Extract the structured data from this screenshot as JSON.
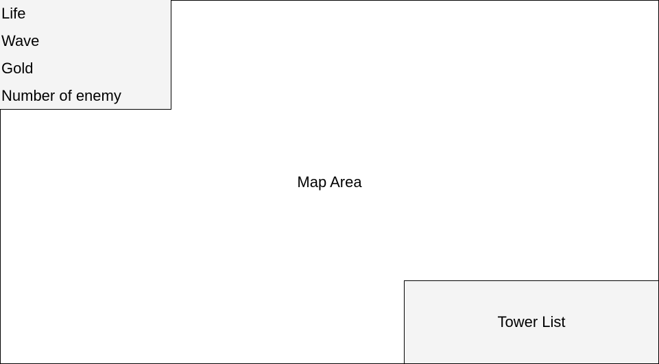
{
  "map": {
    "label": "Map Area"
  },
  "status_panel": {
    "items": [
      {
        "label": "Life"
      },
      {
        "label": "Wave"
      },
      {
        "label": "Gold"
      },
      {
        "label": "Number of enemy"
      }
    ]
  },
  "tower_panel": {
    "label": "Tower List"
  },
  "colors": {
    "panel_fill": "#f4f4f4",
    "border": "#000000",
    "background": "#ffffff"
  }
}
